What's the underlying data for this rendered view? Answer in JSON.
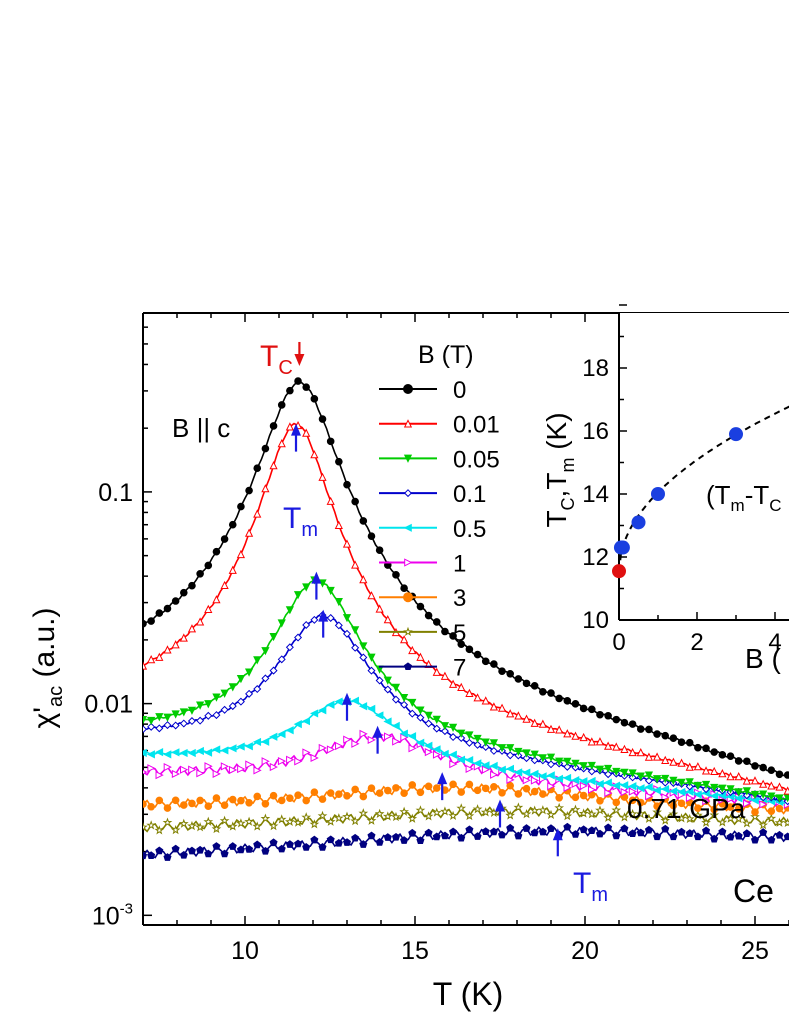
{
  "chart_data": [
    {
      "type": "line",
      "title": "",
      "xlabel": "T (K)",
      "ylabel_main": "χ'",
      "ylabel_sub": "ac",
      "ylabel_unit": "(a.u.)",
      "xlim": [
        7,
        26
      ],
      "ylim": [
        0.0009,
        0.7
      ],
      "yscale": "log",
      "x_ticks": [
        10,
        15,
        20,
        25
      ],
      "y_ticks": [
        {
          "value": 0.001,
          "label": "10",
          "sup": "-3"
        },
        {
          "value": 0.01,
          "label": "0.01",
          "sup": ""
        },
        {
          "value": 0.1,
          "label": "0.1",
          "sup": ""
        }
      ],
      "legend_title": "B (T)",
      "legend_placement": "top-center",
      "annotations": {
        "field_dir": "B || c",
        "pressure": "0.71 GPa",
        "sample_fragment": "Ce",
        "tc_label": "T",
        "tc_sub": "C",
        "tm_label": "T",
        "tm_sub": "m"
      },
      "series": [
        {
          "name": "0",
          "color": "#000000",
          "marker": "circle",
          "fill": true,
          "peak_T": 11.6,
          "peak": 0.33,
          "width": 0.95,
          "base_lo": 0.0105,
          "base_hi": 0.0031
        },
        {
          "name": "0.01",
          "color": "#ff0000",
          "marker": "triangle-up",
          "fill": false,
          "peak_T": 11.5,
          "peak": 0.21,
          "width": 0.85,
          "base_lo": 0.0083,
          "base_hi": 0.0032
        },
        {
          "name": "0.05",
          "color": "#00cc00",
          "marker": "triangle-down",
          "fill": true,
          "peak_T": 12.1,
          "peak": 0.038,
          "width": 1.15,
          "base_lo": 0.0068,
          "base_hi": 0.0033
        },
        {
          "name": "0.1",
          "color": "#0000cc",
          "marker": "diamond",
          "fill": false,
          "peak_T": 12.3,
          "peak": 0.026,
          "width": 1.25,
          "base_lo": 0.0066,
          "base_hi": 0.0033
        },
        {
          "name": "0.5",
          "color": "#00e5ee",
          "marker": "triangle-left",
          "fill": true,
          "peak_T": 13.0,
          "peak": 0.0103,
          "width": 1.6,
          "base_lo": 0.0055,
          "base_hi": 0.0033
        },
        {
          "name": "1",
          "color": "#ee00ee",
          "marker": "triangle-right",
          "fill": false,
          "peak_T": 13.9,
          "peak": 0.007,
          "width": 2.1,
          "base_lo": 0.0046,
          "base_hi": 0.0033
        },
        {
          "name": "3",
          "color": "#ff7f00",
          "marker": "circle",
          "fill": true,
          "peak_T": 16.2,
          "peak": 0.004,
          "width": 5.5,
          "base_lo": 0.0031,
          "base_hi": 0.0029
        },
        {
          "name": "5",
          "color": "#808000",
          "marker": "star",
          "fill": false,
          "peak_T": 18.0,
          "peak": 0.0031,
          "width": 7.0,
          "base_lo": 0.0024,
          "base_hi": 0.0025
        },
        {
          "name": "7",
          "color": "#000080",
          "marker": "pentagon",
          "fill": true,
          "peak_T": 19.5,
          "peak": 0.0025,
          "width": 8.0,
          "base_lo": 0.0017,
          "base_hi": 0.0021
        }
      ],
      "tm_arrows": [
        {
          "x": 11.5,
          "y": 0.155
        },
        {
          "x": 12.1,
          "y": 0.031
        },
        {
          "x": 12.3,
          "y": 0.0205
        },
        {
          "x": 13.0,
          "y": 0.0083
        },
        {
          "x": 13.9,
          "y": 0.0058
        },
        {
          "x": 15.8,
          "y": 0.0035
        },
        {
          "x": 17.5,
          "y": 0.0026
        },
        {
          "x": 19.2,
          "y": 0.0019
        }
      ],
      "tc_arrow": {
        "x": 11.6,
        "y": 0.42
      }
    },
    {
      "type": "scatter",
      "xlabel": "B (",
      "ylabel": "T",
      "ylabel_parts": [
        "T",
        "C",
        ",T",
        "m",
        " (K)"
      ],
      "xlim": [
        0,
        5
      ],
      "ylim": [
        10,
        20
      ],
      "x_ticks": [
        0,
        2,
        4
      ],
      "y_ticks": [
        10,
        12,
        14,
        16,
        18
      ],
      "fit_label": "(T",
      "fit_label_sub": "m",
      "fit_label_rest": "-T",
      "fit_label_sub2": "C",
      "points_tm": [
        [
          0.05,
          12.3
        ],
        [
          0.1,
          12.3
        ],
        [
          0.5,
          13.1
        ],
        [
          1.0,
          14.0
        ],
        [
          3.0,
          15.9
        ]
      ],
      "points_tc": [
        [
          0.0,
          11.55
        ]
      ],
      "colors": {
        "tm": "#1a3fe0",
        "tc": "#e01010"
      }
    }
  ]
}
